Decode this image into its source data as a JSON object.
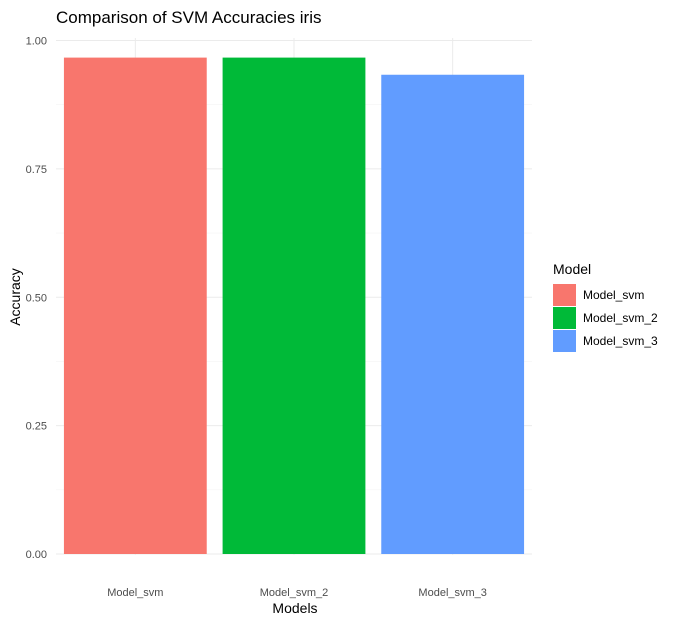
{
  "chart_data": {
    "type": "bar",
    "title": "Comparison of SVM Accuracies  iris",
    "xlabel": "Models",
    "ylabel": "Accuracy",
    "categories": [
      "Model_svm",
      "Model_svm_2",
      "Model_svm_3"
    ],
    "values": [
      0.9667,
      0.9667,
      0.9333
    ],
    "ylim": [
      0,
      1.0
    ],
    "yticks": [
      0.0,
      0.25,
      0.5,
      0.75,
      1.0
    ],
    "ytick_labels": [
      "0.00",
      "0.25",
      "0.50",
      "0.75",
      "1.00"
    ],
    "colors": [
      "#F8766D",
      "#00BA38",
      "#619CFF"
    ],
    "grid": true,
    "legend": {
      "title": "Model",
      "position": "right",
      "entries": [
        "Model_svm",
        "Model_svm_2",
        "Model_svm_3"
      ]
    }
  }
}
